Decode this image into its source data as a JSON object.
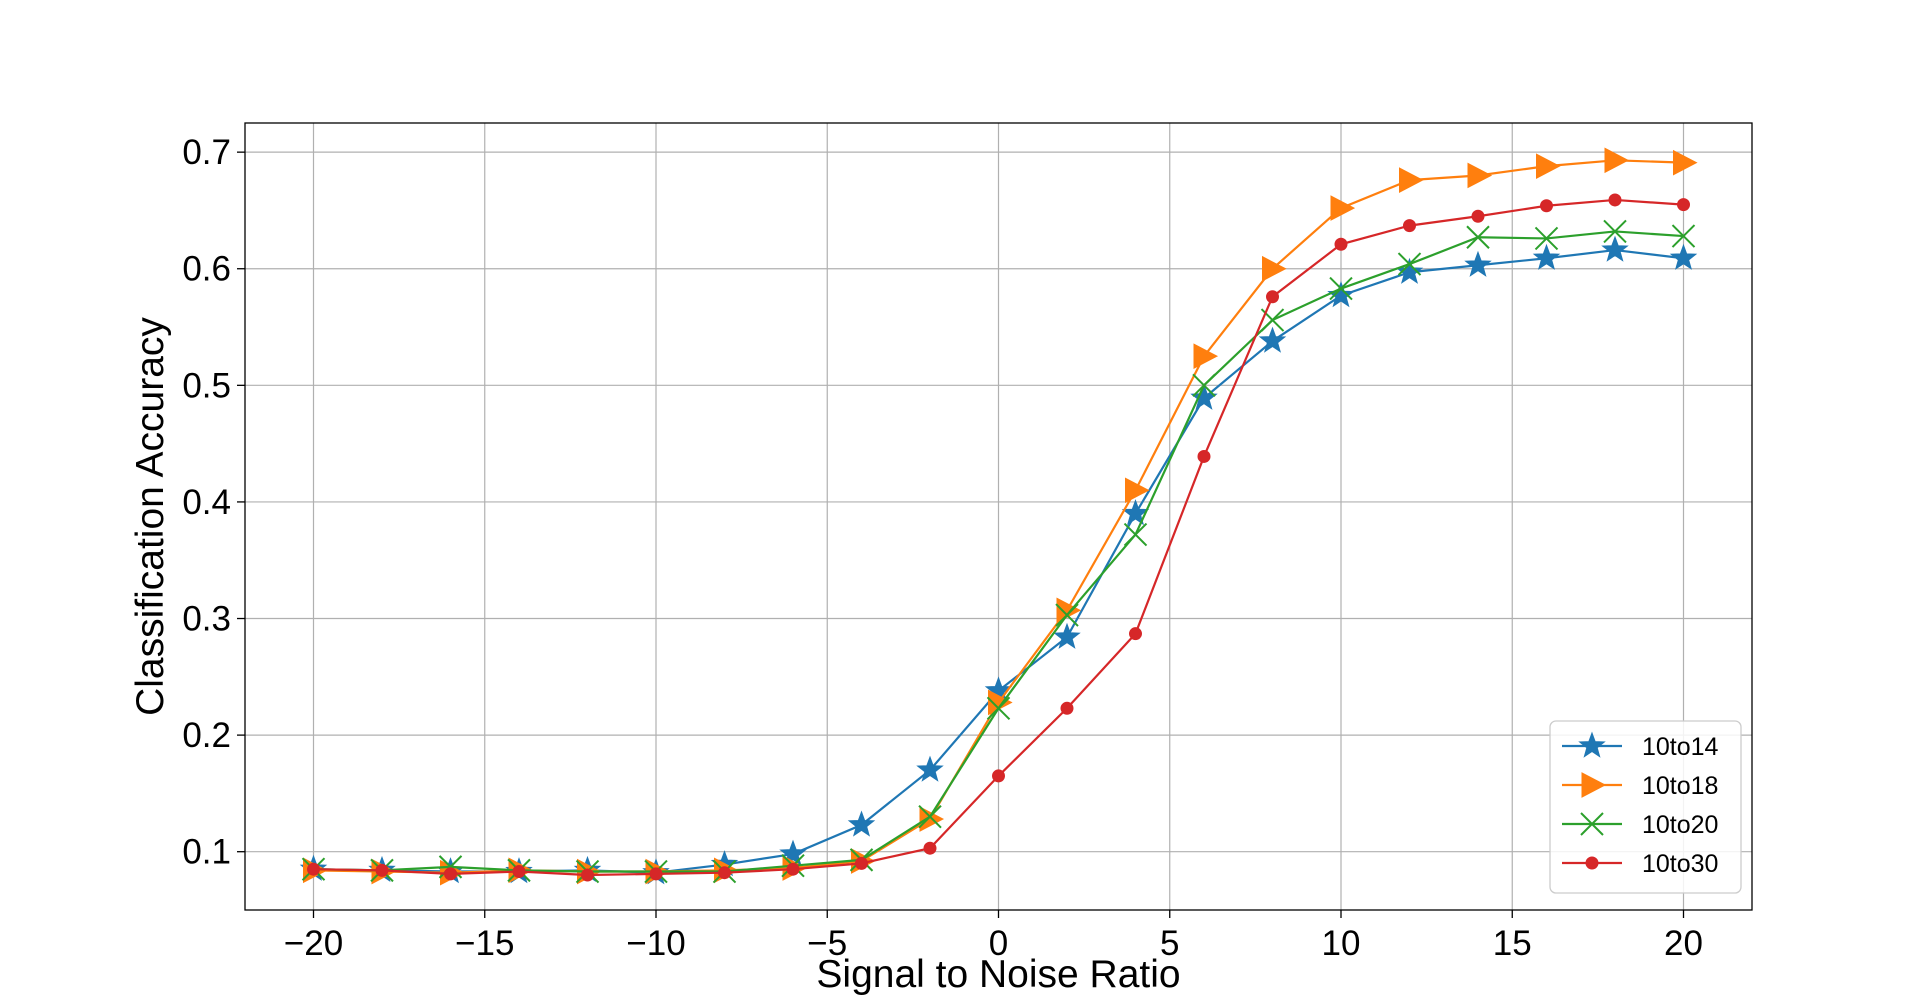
{
  "chart_data": {
    "type": "line",
    "xlabel": "Signal to Noise Ratio",
    "ylabel": "Classification Accuracy",
    "xlim": [
      -22,
      22
    ],
    "ylim": [
      0.05,
      0.725
    ],
    "xticks": [
      -20,
      -15,
      -10,
      -5,
      0,
      5,
      10,
      15,
      20
    ],
    "xtick_labels": [
      "−20",
      "−15",
      "−10",
      "−5",
      "0",
      "5",
      "10",
      "15",
      "20"
    ],
    "yticks": [
      0.1,
      0.2,
      0.3,
      0.4,
      0.5,
      0.6,
      0.7
    ],
    "ytick_labels": [
      "0.1",
      "0.2",
      "0.3",
      "0.4",
      "0.5",
      "0.6",
      "0.7"
    ],
    "grid": true,
    "legend_position": "lower-right",
    "x": [
      -20,
      -18,
      -16,
      -14,
      -12,
      -10,
      -8,
      -6,
      -4,
      -2,
      0,
      2,
      4,
      6,
      8,
      10,
      12,
      14,
      16,
      18,
      20
    ],
    "series": [
      {
        "name": "10to14",
        "color": "#1f77b4",
        "marker": "star",
        "values": [
          0.085,
          0.084,
          0.083,
          0.083,
          0.084,
          0.082,
          0.089,
          0.098,
          0.123,
          0.17,
          0.238,
          0.284,
          0.39,
          0.489,
          0.538,
          0.577,
          0.597,
          0.603,
          0.609,
          0.616,
          0.609
        ]
      },
      {
        "name": "10to18",
        "color": "#ff7f0e",
        "marker": "triangle-right",
        "values": [
          0.084,
          0.083,
          0.082,
          0.084,
          0.083,
          0.083,
          0.084,
          0.086,
          0.092,
          0.128,
          0.228,
          0.307,
          0.41,
          0.525,
          0.6,
          0.652,
          0.676,
          0.68,
          0.688,
          0.693,
          0.691
        ]
      },
      {
        "name": "10to20",
        "color": "#2ca02c",
        "marker": "x",
        "values": [
          0.085,
          0.084,
          0.087,
          0.084,
          0.083,
          0.083,
          0.083,
          0.088,
          0.093,
          0.13,
          0.223,
          0.303,
          0.372,
          0.5,
          0.556,
          0.583,
          0.604,
          0.627,
          0.626,
          0.632,
          0.628
        ]
      },
      {
        "name": "10to30",
        "color": "#d62728",
        "marker": "circle",
        "values": [
          0.085,
          0.084,
          0.081,
          0.083,
          0.08,
          0.081,
          0.082,
          0.085,
          0.09,
          0.103,
          0.165,
          0.223,
          0.287,
          0.439,
          0.576,
          0.621,
          0.637,
          0.645,
          0.654,
          0.659,
          0.655
        ]
      }
    ]
  }
}
